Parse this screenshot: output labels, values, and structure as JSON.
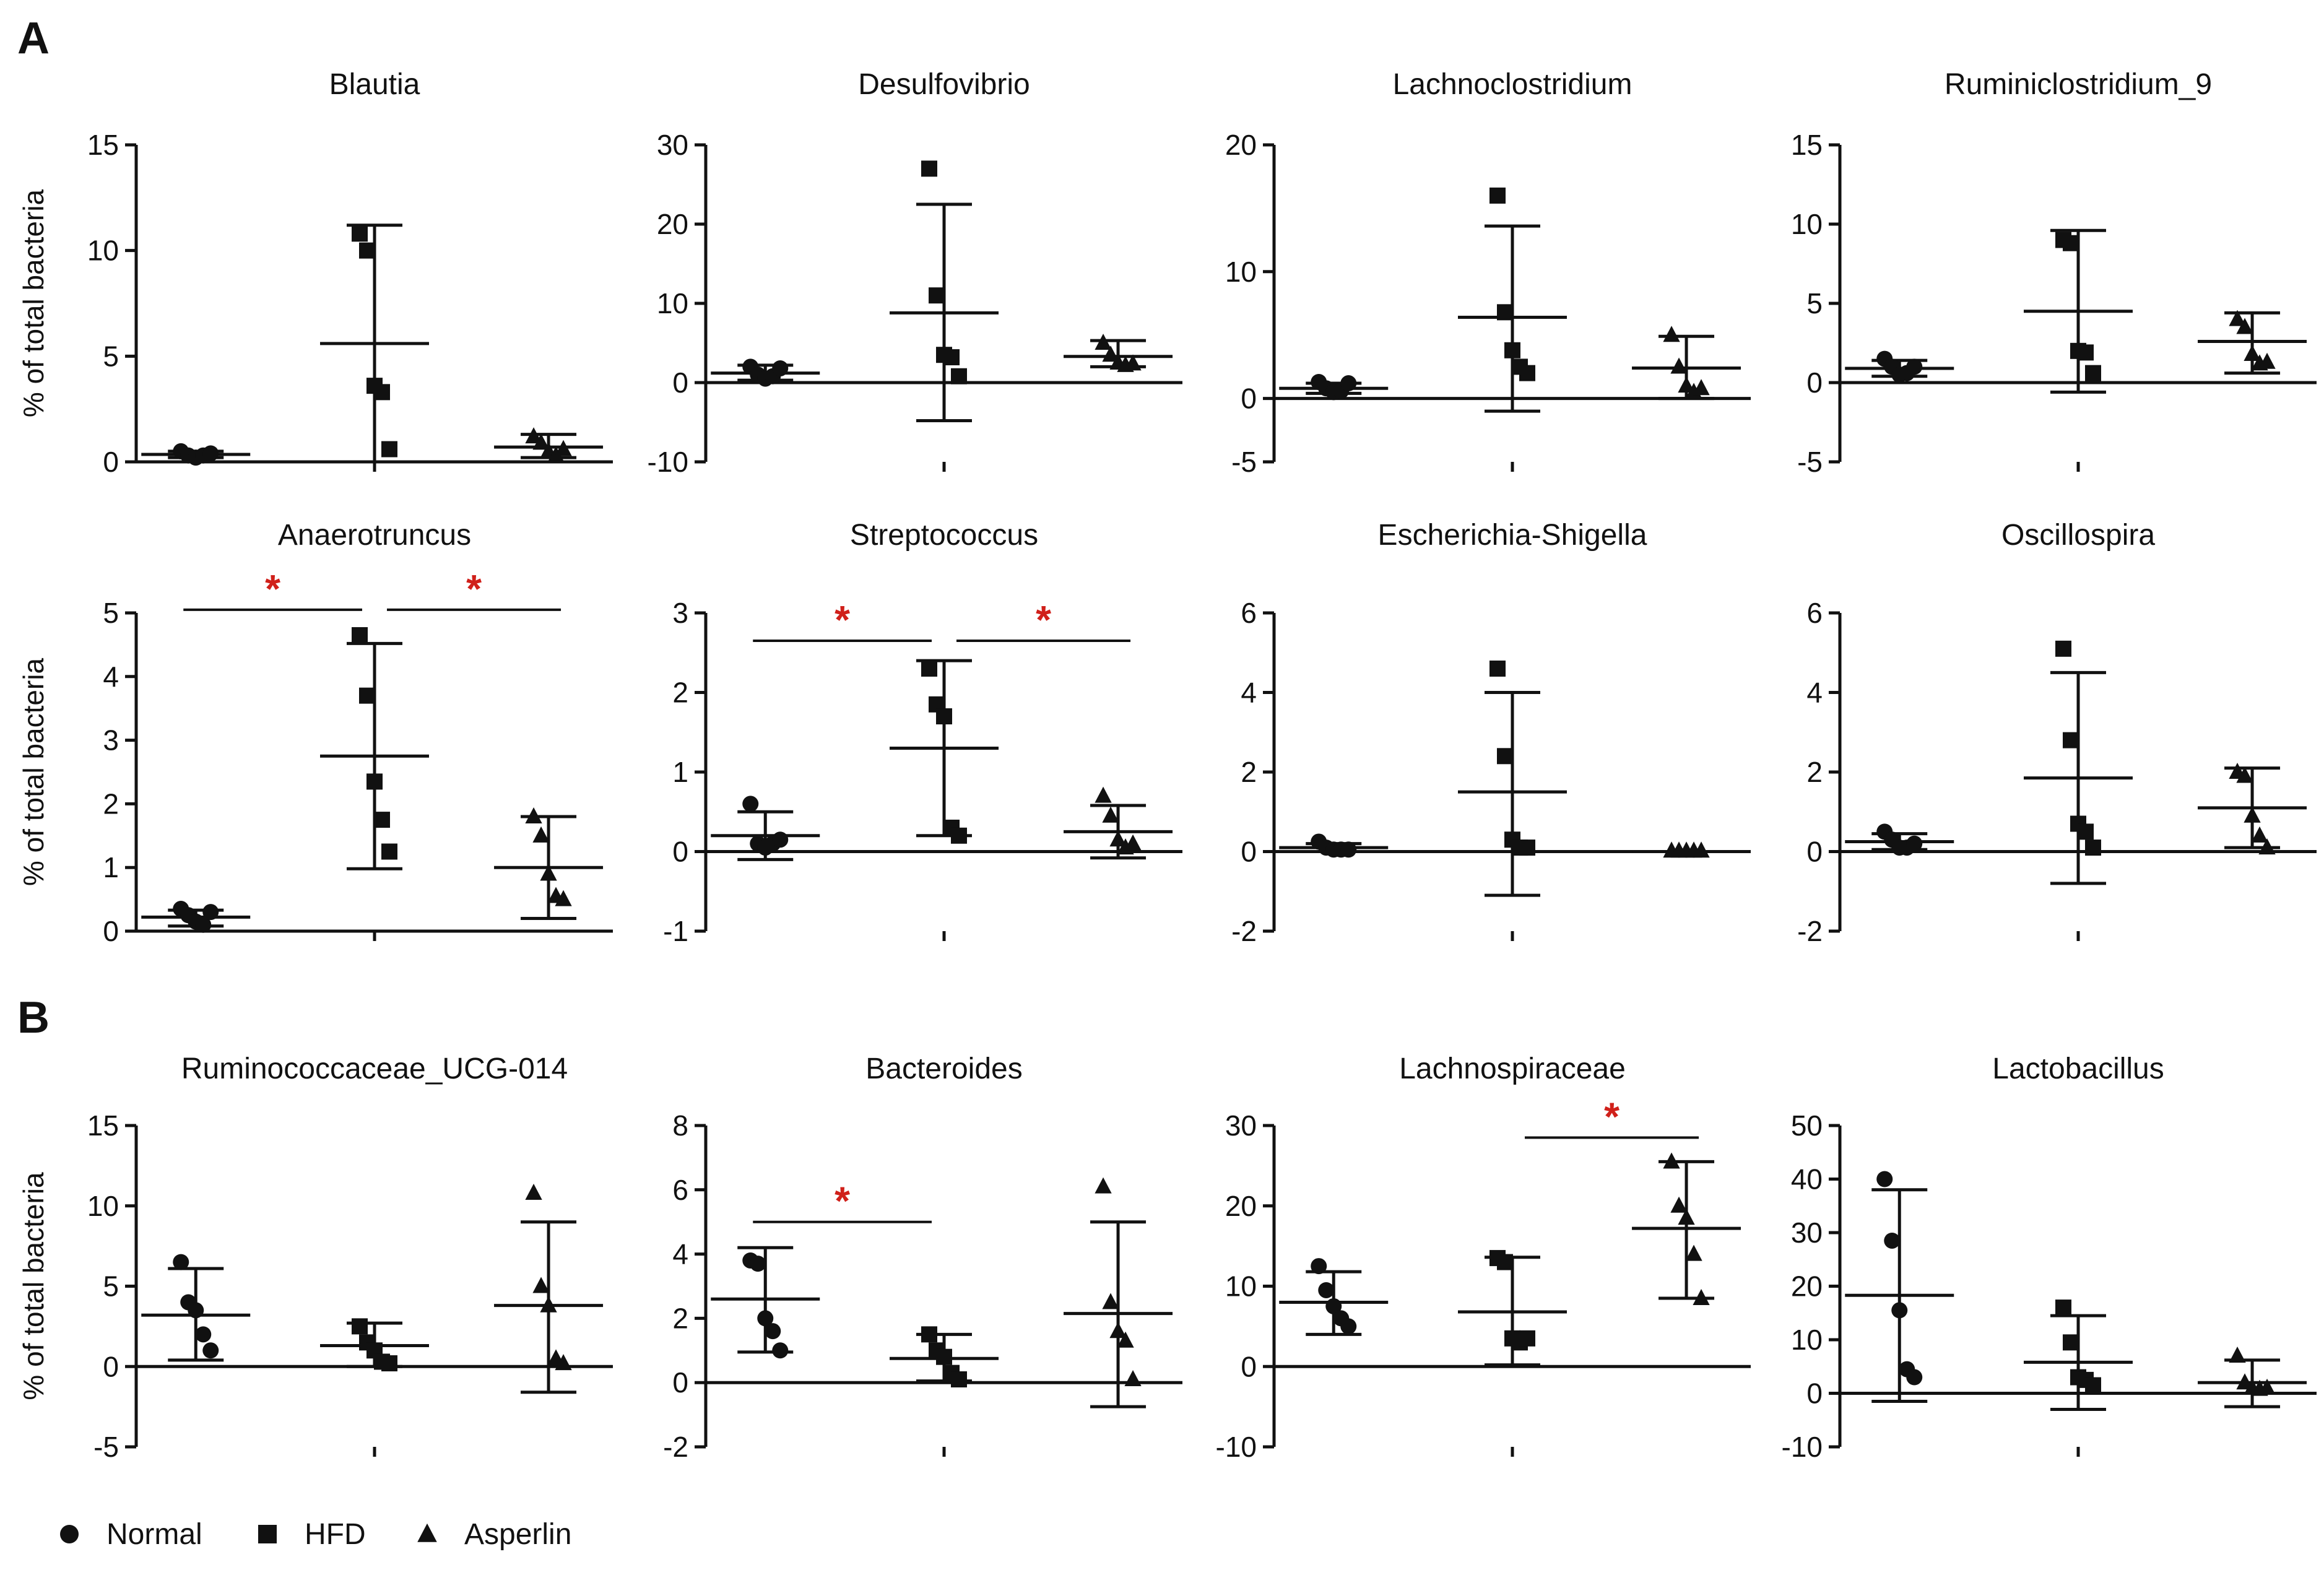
{
  "figure": {
    "panel_letters": [
      "A",
      "B"
    ],
    "accent_color": "#d0201a",
    "ink_color": "#111111"
  },
  "legend": {
    "items": [
      {
        "label": "Normal",
        "marker": "circle"
      },
      {
        "label": "HFD",
        "marker": "square"
      },
      {
        "label": "Asperlin",
        "marker": "triangle"
      }
    ]
  },
  "chart_data": [
    {
      "type": "scatter",
      "title": "Blautia",
      "ylabel": "% of total bacteria",
      "show_ylabel": true,
      "ylim": [
        0,
        15
      ],
      "yticks": [
        0,
        5,
        10,
        15
      ],
      "groups": [
        {
          "name": "Normal",
          "marker": "circle",
          "points": [
            0.5,
            0.3,
            0.2,
            0.3,
            0.4
          ],
          "mean": 0.35,
          "sd_low": 0.2,
          "sd_high": 0.5
        },
        {
          "name": "HFD",
          "marker": "square",
          "points": [
            10.8,
            10.0,
            3.6,
            3.3,
            0.6
          ],
          "mean": 5.6,
          "sd_low": 0.0,
          "sd_high": 11.2
        },
        {
          "name": "Asperlin",
          "marker": "triangle",
          "points": [
            1.2,
            0.9,
            0.5,
            0.3,
            0.6
          ],
          "mean": 0.7,
          "sd_low": 0.2,
          "sd_high": 1.3
        }
      ],
      "significance": []
    },
    {
      "type": "scatter",
      "title": "Desulfovibrio",
      "ylabel": "% of total bacteria",
      "show_ylabel": false,
      "ylim": [
        -10,
        30
      ],
      "yticks": [
        -10,
        0,
        10,
        20,
        30
      ],
      "groups": [
        {
          "name": "Normal",
          "marker": "circle",
          "points": [
            2.0,
            1.0,
            0.5,
            0.8,
            1.8
          ],
          "mean": 1.2,
          "sd_low": 0.3,
          "sd_high": 2.2
        },
        {
          "name": "HFD",
          "marker": "square",
          "points": [
            27.0,
            11.0,
            3.5,
            3.2,
            0.8
          ],
          "mean": 8.8,
          "sd_low": -4.8,
          "sd_high": 22.5
        },
        {
          "name": "Asperlin",
          "marker": "triangle",
          "points": [
            5.0,
            3.5,
            2.5,
            2.2,
            2.4
          ],
          "mean": 3.3,
          "sd_low": 2.0,
          "sd_high": 5.3
        }
      ],
      "significance": []
    },
    {
      "type": "scatter",
      "title": "Lachnoclostridium",
      "ylabel": "% of total bacteria",
      "show_ylabel": false,
      "ylim": [
        -5,
        20
      ],
      "yticks": [
        -5,
        0,
        10,
        20
      ],
      "groups": [
        {
          "name": "Normal",
          "marker": "circle",
          "points": [
            1.3,
            0.8,
            0.5,
            0.6,
            1.2
          ],
          "mean": 0.8,
          "sd_low": 0.4,
          "sd_high": 1.2
        },
        {
          "name": "HFD",
          "marker": "square",
          "points": [
            16.0,
            6.8,
            3.8,
            2.5,
            2.0
          ],
          "mean": 6.4,
          "sd_low": -1.0,
          "sd_high": 13.6
        },
        {
          "name": "Asperlin",
          "marker": "triangle",
          "points": [
            5.0,
            2.5,
            1.0,
            0.5,
            0.8
          ],
          "mean": 2.4,
          "sd_low": 0.0,
          "sd_high": 4.9
        }
      ],
      "significance": []
    },
    {
      "type": "scatter",
      "title": "Ruminiclostridium_9",
      "ylabel": "% of total bacteria",
      "show_ylabel": false,
      "ylim": [
        -5,
        15
      ],
      "yticks": [
        -5,
        0,
        5,
        10,
        15
      ],
      "groups": [
        {
          "name": "Normal",
          "marker": "circle",
          "points": [
            1.5,
            1.0,
            0.5,
            0.6,
            1.0
          ],
          "mean": 0.9,
          "sd_low": 0.4,
          "sd_high": 1.4
        },
        {
          "name": "HFD",
          "marker": "square",
          "points": [
            9.0,
            8.8,
            2.0,
            1.9,
            0.6
          ],
          "mean": 4.5,
          "sd_low": -0.6,
          "sd_high": 9.6
        },
        {
          "name": "Asperlin",
          "marker": "triangle",
          "points": [
            4.0,
            3.5,
            1.8,
            1.2,
            1.3
          ],
          "mean": 2.6,
          "sd_low": 0.6,
          "sd_high": 4.4
        }
      ],
      "significance": []
    },
    {
      "type": "scatter",
      "title": "Anaerotruncus",
      "ylabel": "% of total bacteria",
      "show_ylabel": true,
      "ylim": [
        0,
        5
      ],
      "yticks": [
        0,
        1,
        2,
        3,
        4,
        5
      ],
      "groups": [
        {
          "name": "Normal",
          "marker": "circle",
          "points": [
            0.35,
            0.25,
            0.15,
            0.1,
            0.3
          ],
          "mean": 0.22,
          "sd_low": 0.08,
          "sd_high": 0.33
        },
        {
          "name": "HFD",
          "marker": "square",
          "points": [
            4.65,
            3.7,
            2.35,
            1.75,
            1.25
          ],
          "mean": 2.75,
          "sd_low": 0.98,
          "sd_high": 4.52
        },
        {
          "name": "Asperlin",
          "marker": "triangle",
          "points": [
            1.8,
            1.5,
            0.9,
            0.55,
            0.5
          ],
          "mean": 1.0,
          "sd_low": 0.2,
          "sd_high": 1.8
        }
      ],
      "significance": [
        {
          "from": 0,
          "to": 1,
          "label": "*",
          "level": 5.05
        },
        {
          "from": 1,
          "to": 2,
          "label": "*",
          "level": 5.05
        }
      ]
    },
    {
      "type": "scatter",
      "title": "Streptococcus",
      "ylabel": "% of total bacteria",
      "show_ylabel": false,
      "ylim": [
        -1,
        3
      ],
      "yticks": [
        -1,
        0,
        1,
        2,
        3
      ],
      "groups": [
        {
          "name": "Normal",
          "marker": "circle",
          "points": [
            0.6,
            0.1,
            0.05,
            0.1,
            0.15
          ],
          "mean": 0.2,
          "sd_low": -0.1,
          "sd_high": 0.5
        },
        {
          "name": "HFD",
          "marker": "square",
          "points": [
            2.3,
            1.85,
            1.7,
            0.3,
            0.2
          ],
          "mean": 1.3,
          "sd_low": 0.2,
          "sd_high": 2.4
        },
        {
          "name": "Asperlin",
          "marker": "triangle",
          "points": [
            0.7,
            0.45,
            0.15,
            0.05,
            0.1
          ],
          "mean": 0.25,
          "sd_low": -0.08,
          "sd_high": 0.58
        }
      ],
      "significance": [
        {
          "from": 0,
          "to": 1,
          "label": "*",
          "level": 2.65
        },
        {
          "from": 1,
          "to": 2,
          "label": "*",
          "level": 2.65
        }
      ]
    },
    {
      "type": "scatter",
      "title": "Escherichia-Shigella",
      "ylabel": "% of total bacteria",
      "show_ylabel": false,
      "ylim": [
        -2,
        6
      ],
      "yticks": [
        -2,
        0,
        2,
        4,
        6
      ],
      "groups": [
        {
          "name": "Normal",
          "marker": "circle",
          "points": [
            0.25,
            0.1,
            0.05,
            0.05,
            0.05
          ],
          "mean": 0.1,
          "sd_low": 0.0,
          "sd_high": 0.2
        },
        {
          "name": "HFD",
          "marker": "square",
          "points": [
            4.6,
            2.4,
            0.3,
            0.1,
            0.1
          ],
          "mean": 1.5,
          "sd_low": -1.1,
          "sd_high": 4.0
        },
        {
          "name": "Asperlin",
          "marker": "triangle",
          "points": [
            0.02,
            0.02,
            0.02,
            0.02,
            0.02
          ],
          "mean": 0.0,
          "sd_low": 0.0,
          "sd_high": 0.0
        }
      ],
      "significance": []
    },
    {
      "type": "scatter",
      "title": "Oscillospira",
      "ylabel": "% of total bacteria",
      "show_ylabel": false,
      "ylim": [
        -2,
        6
      ],
      "yticks": [
        -2,
        0,
        2,
        4,
        6
      ],
      "groups": [
        {
          "name": "Normal",
          "marker": "circle",
          "points": [
            0.5,
            0.3,
            0.1,
            0.1,
            0.2
          ],
          "mean": 0.25,
          "sd_low": 0.05,
          "sd_high": 0.45
        },
        {
          "name": "HFD",
          "marker": "square",
          "points": [
            5.1,
            2.8,
            0.7,
            0.5,
            0.1
          ],
          "mean": 1.85,
          "sd_low": -0.8,
          "sd_high": 4.5
        },
        {
          "name": "Asperlin",
          "marker": "triangle",
          "points": [
            2.0,
            1.9,
            0.9,
            0.4,
            0.1
          ],
          "mean": 1.1,
          "sd_low": 0.1,
          "sd_high": 2.1
        }
      ],
      "significance": []
    },
    {
      "type": "scatter",
      "title": "Ruminococcaceae_UCG-014",
      "ylabel": "% of total bacteria",
      "show_ylabel": true,
      "ylim": [
        -5,
        15
      ],
      "yticks": [
        -5,
        0,
        5,
        10,
        15
      ],
      "groups": [
        {
          "name": "Normal",
          "marker": "circle",
          "points": [
            6.5,
            4.0,
            3.5,
            2.0,
            1.0
          ],
          "mean": 3.2,
          "sd_low": 0.4,
          "sd_high": 6.1
        },
        {
          "name": "HFD",
          "marker": "square",
          "points": [
            2.5,
            1.5,
            1.0,
            0.3,
            0.2
          ],
          "mean": 1.3,
          "sd_low": 0.0,
          "sd_high": 2.7
        },
        {
          "name": "Asperlin",
          "marker": "triangle",
          "points": [
            10.8,
            5.0,
            3.8,
            0.5,
            0.2
          ],
          "mean": 3.8,
          "sd_low": -1.6,
          "sd_high": 9.0
        }
      ],
      "significance": []
    },
    {
      "type": "scatter",
      "title": "Bacteroides",
      "ylabel": "% of total bacteria",
      "show_ylabel": false,
      "ylim": [
        -2,
        8
      ],
      "yticks": [
        -2,
        0,
        2,
        4,
        6,
        8
      ],
      "groups": [
        {
          "name": "Normal",
          "marker": "circle",
          "points": [
            3.8,
            3.7,
            2.0,
            1.6,
            1.0
          ],
          "mean": 2.6,
          "sd_low": 0.95,
          "sd_high": 4.2
        },
        {
          "name": "HFD",
          "marker": "square",
          "points": [
            1.5,
            1.0,
            0.8,
            0.3,
            0.1
          ],
          "mean": 0.75,
          "sd_low": 0.05,
          "sd_high": 1.5
        },
        {
          "name": "Asperlin",
          "marker": "triangle",
          "points": [
            6.1,
            2.5,
            1.6,
            1.3,
            0.1
          ],
          "mean": 2.15,
          "sd_low": -0.75,
          "sd_high": 5.0
        }
      ],
      "significance": [
        {
          "from": 0,
          "to": 1,
          "label": "*",
          "level": 5.0
        }
      ]
    },
    {
      "type": "scatter",
      "title": "Lachnospiraceae",
      "ylabel": "% of total bacteria",
      "show_ylabel": false,
      "ylim": [
        -10,
        30
      ],
      "yticks": [
        -10,
        0,
        10,
        20,
        30
      ],
      "groups": [
        {
          "name": "Normal",
          "marker": "circle",
          "points": [
            12.5,
            9.5,
            7.5,
            6.0,
            5.0
          ],
          "mean": 8.0,
          "sd_low": 4.0,
          "sd_high": 11.8
        },
        {
          "name": "HFD",
          "marker": "square",
          "points": [
            13.5,
            13.0,
            3.5,
            3.0,
            3.5
          ],
          "mean": 6.8,
          "sd_low": 0.2,
          "sd_high": 13.6
        },
        {
          "name": "Asperlin",
          "marker": "triangle",
          "points": [
            25.5,
            20.0,
            18.5,
            14.0,
            8.5
          ],
          "mean": 17.2,
          "sd_low": 8.5,
          "sd_high": 25.5
        }
      ],
      "significance": [
        {
          "from": 1,
          "to": 2,
          "label": "*",
          "level": 28.5
        }
      ]
    },
    {
      "type": "scatter",
      "title": "Lactobacillus",
      "ylabel": "% of total bacteria",
      "show_ylabel": false,
      "ylim": [
        -10,
        50
      ],
      "yticks": [
        -10,
        0,
        10,
        20,
        30,
        40,
        50
      ],
      "groups": [
        {
          "name": "Normal",
          "marker": "circle",
          "points": [
            40.0,
            28.5,
            15.5,
            4.5,
            3.0
          ],
          "mean": 18.3,
          "sd_low": -1.5,
          "sd_high": 38.0
        },
        {
          "name": "HFD",
          "marker": "square",
          "points": [
            16.0,
            9.5,
            3.0,
            2.5,
            1.5
          ],
          "mean": 5.8,
          "sd_low": -3.0,
          "sd_high": 14.5
        },
        {
          "name": "Asperlin",
          "marker": "triangle",
          "points": [
            7.0,
            2.0,
            1.0,
            0.8,
            1.0
          ],
          "mean": 2.0,
          "sd_low": -2.5,
          "sd_high": 6.2
        }
      ],
      "significance": []
    }
  ]
}
